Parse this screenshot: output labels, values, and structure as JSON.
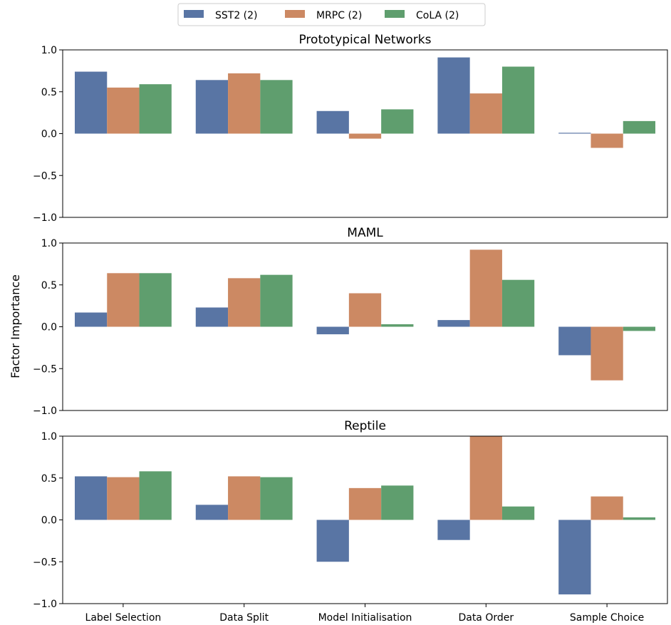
{
  "chart_data": {
    "type": "bar",
    "ylabel": "Factor Importance",
    "ylim": [
      -1.0,
      1.0
    ],
    "yticks": [
      "1.0",
      "0.5",
      "0.0",
      "−0.5",
      "−1.0"
    ],
    "ytick_values": [
      1.0,
      0.5,
      0.0,
      -0.5,
      -1.0
    ],
    "categories": [
      "Label Selection",
      "Data Split",
      "Model Initialisation",
      "Data Order",
      "Sample Choice"
    ],
    "legend": {
      "placement": "top-center",
      "entries": [
        "SST2 (2)",
        "MRPC (2)",
        "CoLA (2)"
      ]
    },
    "colors": [
      "#5975a4",
      "#cc8963",
      "#5f9e6e"
    ],
    "grid": false,
    "panels": [
      {
        "title": "Prototypical Networks",
        "series": [
          {
            "name": "SST2 (2)",
            "values": [
              0.74,
              0.64,
              0.27,
              0.91,
              0.01
            ]
          },
          {
            "name": "MRPC (2)",
            "values": [
              0.55,
              0.72,
              -0.06,
              0.48,
              -0.17
            ]
          },
          {
            "name": "CoLA (2)",
            "values": [
              0.59,
              0.64,
              0.29,
              0.8,
              0.15
            ]
          }
        ]
      },
      {
        "title": "MAML",
        "series": [
          {
            "name": "SST2 (2)",
            "values": [
              0.17,
              0.23,
              -0.09,
              0.08,
              -0.34
            ]
          },
          {
            "name": "MRPC (2)",
            "values": [
              0.64,
              0.58,
              0.4,
              0.92,
              -0.64
            ]
          },
          {
            "name": "CoLA (2)",
            "values": [
              0.64,
              0.62,
              0.03,
              0.56,
              -0.05
            ]
          }
        ]
      },
      {
        "title": "Reptile",
        "series": [
          {
            "name": "SST2 (2)",
            "values": [
              0.52,
              0.18,
              -0.5,
              -0.24,
              -0.89
            ]
          },
          {
            "name": "MRPC (2)",
            "values": [
              0.51,
              0.52,
              0.38,
              1.0,
              0.28
            ]
          },
          {
            "name": "CoLA (2)",
            "values": [
              0.58,
              0.51,
              0.41,
              0.16,
              0.03
            ]
          }
        ]
      }
    ]
  }
}
